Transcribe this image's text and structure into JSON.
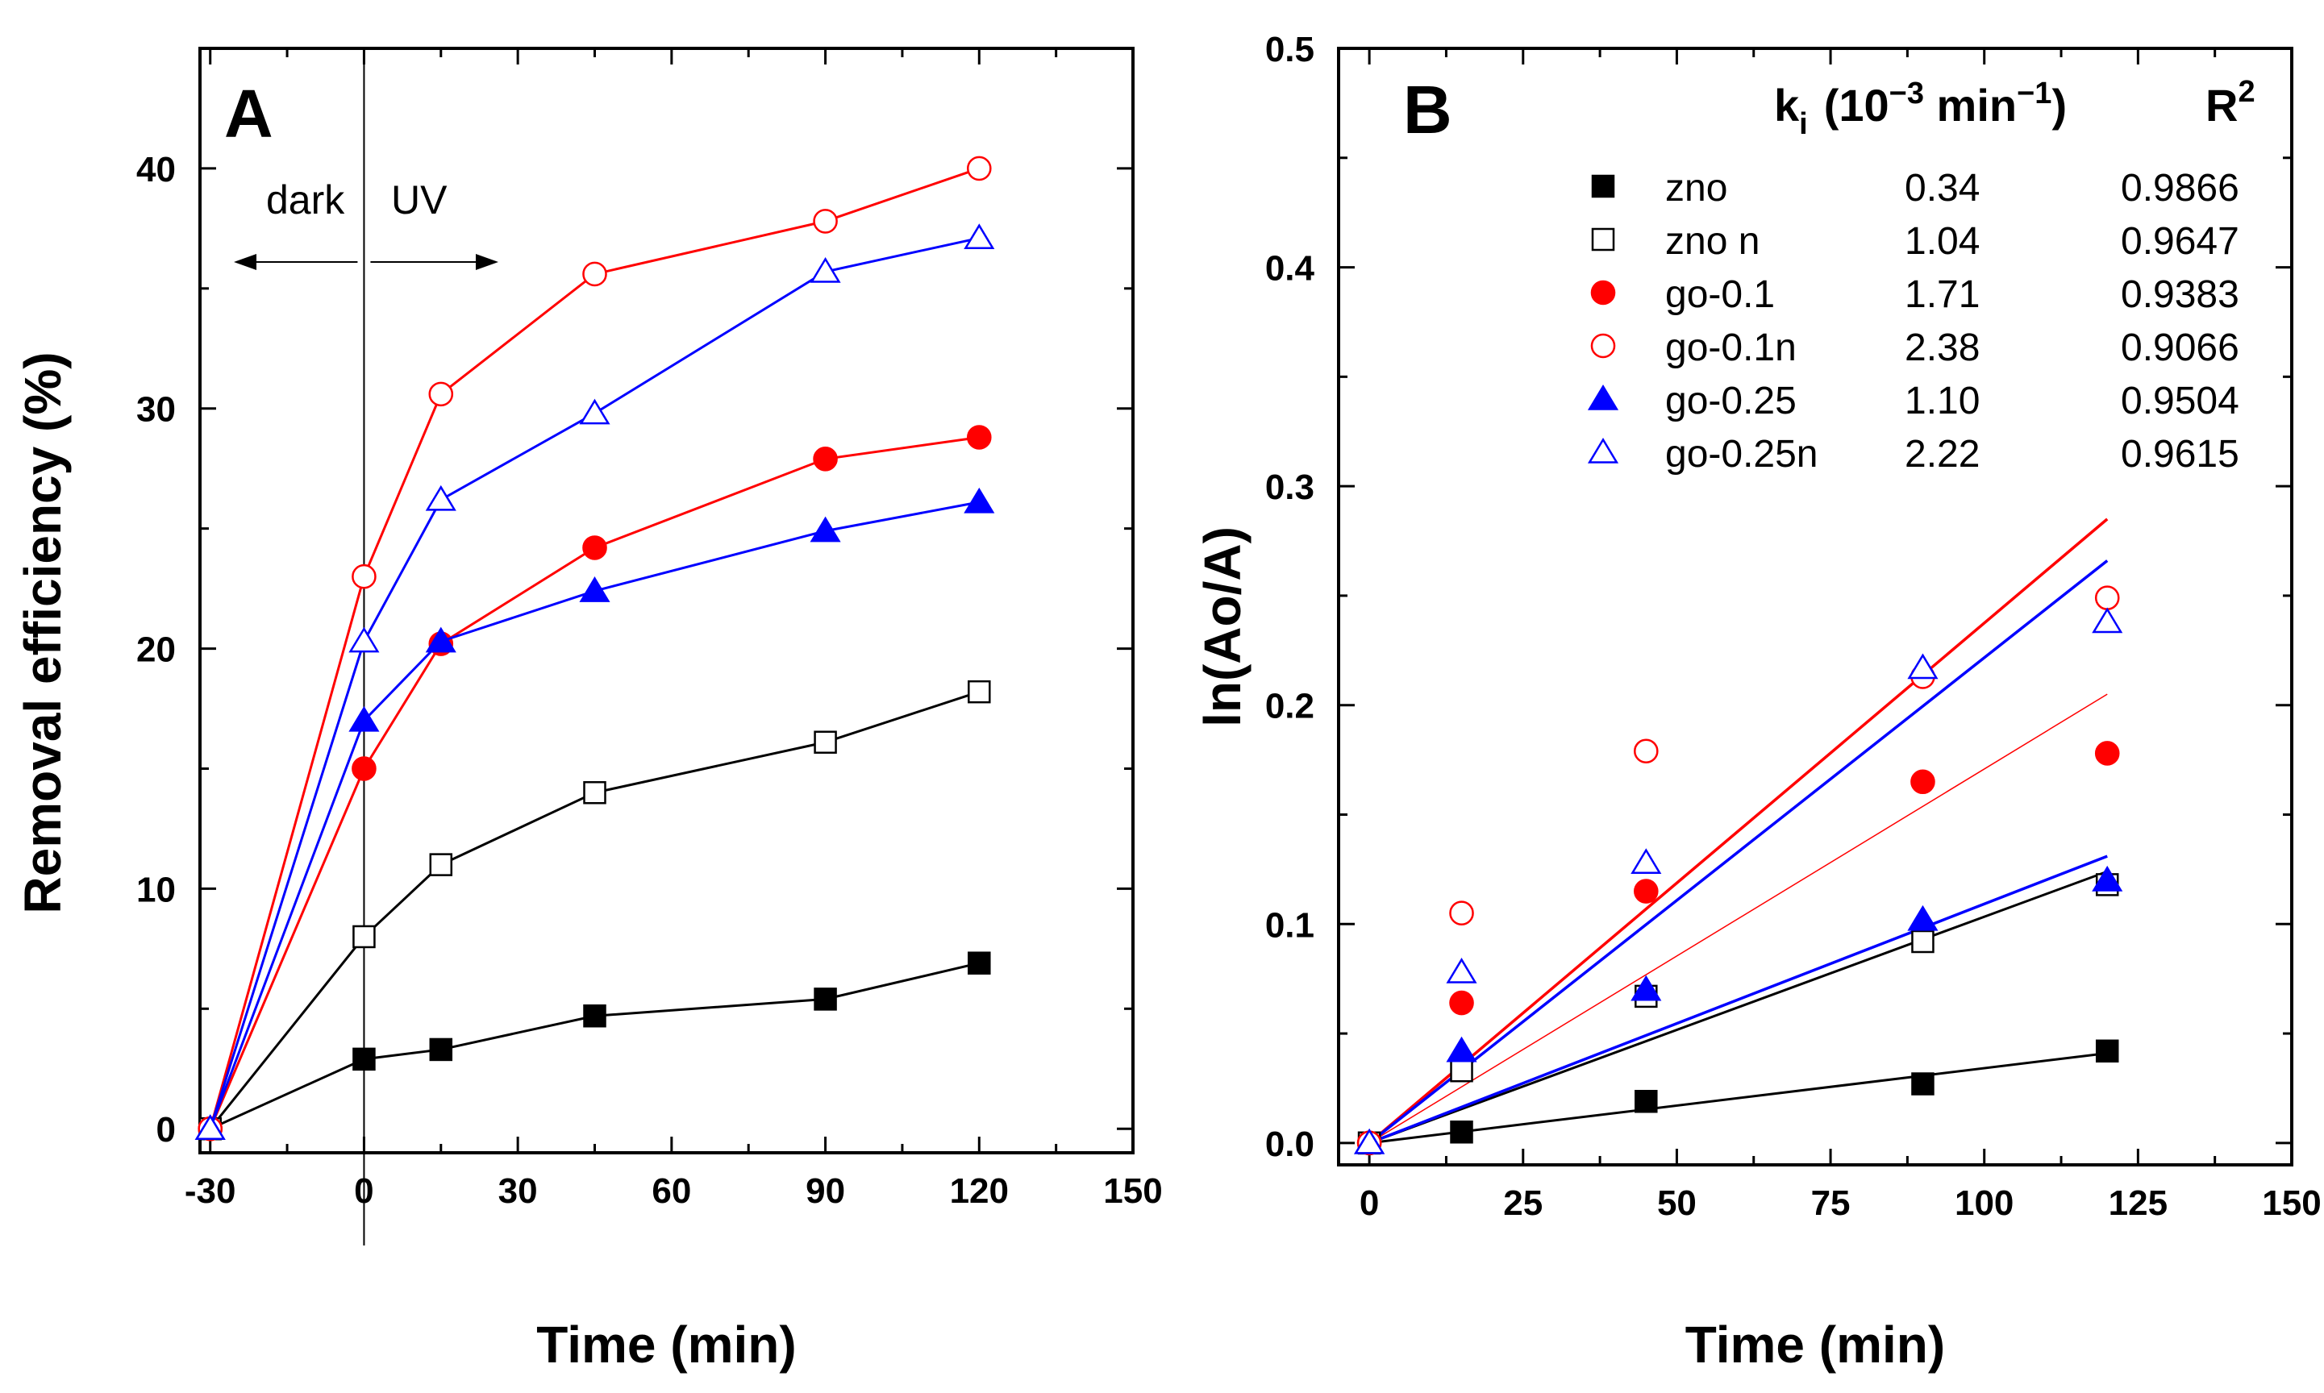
{
  "chart_data": [
    {
      "type": "line",
      "panel": "A",
      "xlabel": "Time (min)",
      "ylabel": "Removal efficiency (%)",
      "xlim": [
        -32,
        150
      ],
      "ylim": [
        -1,
        45
      ],
      "xticks": [
        -30,
        0,
        30,
        60,
        90,
        120,
        150
      ],
      "yticks": [
        0,
        10,
        20,
        30,
        40
      ],
      "annotations": {
        "dark": "dark",
        "uv": "UV",
        "divider_x": 0
      },
      "series": [
        {
          "name": "zno",
          "color": "#000000",
          "marker": "square",
          "filled": true,
          "x": [
            -30,
            0,
            15,
            45,
            90,
            120
          ],
          "y": [
            0,
            2.9,
            3.3,
            4.7,
            5.4,
            6.9
          ]
        },
        {
          "name": "zno n",
          "color": "#000000",
          "marker": "square",
          "filled": false,
          "x": [
            -30,
            0,
            15,
            45,
            90,
            120
          ],
          "y": [
            0,
            8.0,
            11.0,
            14.0,
            16.1,
            18.2
          ]
        },
        {
          "name": "go-0.1",
          "color": "#ff0000",
          "marker": "circle",
          "filled": true,
          "x": [
            -30,
            0,
            15,
            45,
            90,
            120
          ],
          "y": [
            0,
            15.0,
            20.2,
            24.2,
            27.9,
            28.8
          ]
        },
        {
          "name": "go-0.1n",
          "color": "#ff0000",
          "marker": "circle",
          "filled": false,
          "x": [
            -30,
            0,
            15,
            45,
            90,
            120
          ],
          "y": [
            0,
            23.0,
            30.6,
            35.6,
            37.8,
            40.0
          ]
        },
        {
          "name": "go-0.25",
          "color": "#0000ff",
          "marker": "triangle",
          "filled": true,
          "x": [
            -30,
            0,
            15,
            45,
            90,
            120
          ],
          "y": [
            0,
            17.0,
            20.3,
            22.4,
            24.9,
            26.1
          ]
        },
        {
          "name": "go-0.25n",
          "color": "#0000ff",
          "marker": "triangle",
          "filled": false,
          "x": [
            -30,
            0,
            15,
            45,
            90,
            120
          ],
          "y": [
            0,
            20.3,
            26.2,
            29.8,
            35.7,
            37.1
          ]
        }
      ]
    },
    {
      "type": "scatter",
      "panel": "B",
      "xlabel": "Time (min)",
      "ylabel": "ln(Ao/A)",
      "xlim": [
        -5,
        150
      ],
      "ylim": [
        -0.01,
        0.5
      ],
      "xticks": [
        0,
        25,
        50,
        75,
        100,
        125,
        150
      ],
      "yticks": [
        "0.0",
        "0.1",
        "0.2",
        "0.3",
        "0.4",
        "0.5"
      ],
      "table": {
        "col_k": "k",
        "col_k_sub": "i",
        "col_k_units": "(10",
        "col_k_exp1": "−3",
        "col_k_units2": " min",
        "col_k_exp2": "−1",
        "col_k_close": ")",
        "col_r2": "R",
        "col_r2_exp": "2"
      },
      "series": [
        {
          "name": "zno",
          "color": "#000000",
          "marker": "square",
          "filled": true,
          "k": "0.34",
          "r2": "0.9866",
          "x": [
            0,
            15,
            45,
            90,
            120
          ],
          "y": [
            0,
            0.005,
            0.019,
            0.027,
            0.042
          ],
          "fit": {
            "x": [
              0,
              120
            ],
            "y": [
              0,
              0.041
            ],
            "width": 3
          }
        },
        {
          "name": "zno n",
          "color": "#000000",
          "marker": "square",
          "filled": false,
          "k": "1.04",
          "r2": "0.9647",
          "x": [
            0,
            15,
            45,
            90,
            120
          ],
          "y": [
            0,
            0.033,
            0.067,
            0.092,
            0.118
          ],
          "fit": {
            "x": [
              0,
              120
            ],
            "y": [
              0,
              0.124
            ],
            "width": 3
          }
        },
        {
          "name": "go-0.1",
          "color": "#ff0000",
          "marker": "circle",
          "filled": true,
          "k": "1.71",
          "r2": "0.9383",
          "x": [
            0,
            15,
            45,
            90,
            120
          ],
          "y": [
            0,
            0.064,
            0.115,
            0.165,
            0.178
          ],
          "fit": {
            "x": [
              0,
              120
            ],
            "y": [
              0,
              0.205
            ],
            "width": 1.5
          }
        },
        {
          "name": "go-0.1n",
          "color": "#ff0000",
          "marker": "circle",
          "filled": false,
          "k": "2.38",
          "r2": "0.9066",
          "x": [
            0,
            15,
            45,
            90,
            120
          ],
          "y": [
            0,
            0.105,
            0.179,
            0.213,
            0.249
          ],
          "fit": {
            "x": [
              0,
              120
            ],
            "y": [
              0,
              0.285
            ],
            "width": 3.5
          }
        },
        {
          "name": "go-0.25",
          "color": "#0000ff",
          "marker": "triangle",
          "filled": true,
          "k": "1.10",
          "r2": "0.9504",
          "x": [
            0,
            15,
            45,
            90,
            120
          ],
          "y": [
            0,
            0.042,
            0.07,
            0.102,
            0.12
          ],
          "fit": {
            "x": [
              0,
              120
            ],
            "y": [
              0,
              0.131
            ],
            "width": 3.5
          }
        },
        {
          "name": "go-0.25n",
          "color": "#0000ff",
          "marker": "triangle",
          "filled": false,
          "k": "2.22",
          "r2": "0.9615",
          "x": [
            0,
            15,
            45,
            90,
            120
          ],
          "y": [
            0,
            0.078,
            0.128,
            0.217,
            0.238
          ],
          "fit": {
            "x": [
              0,
              120
            ],
            "y": [
              0,
              0.266
            ],
            "width": 3.5
          }
        }
      ]
    }
  ]
}
